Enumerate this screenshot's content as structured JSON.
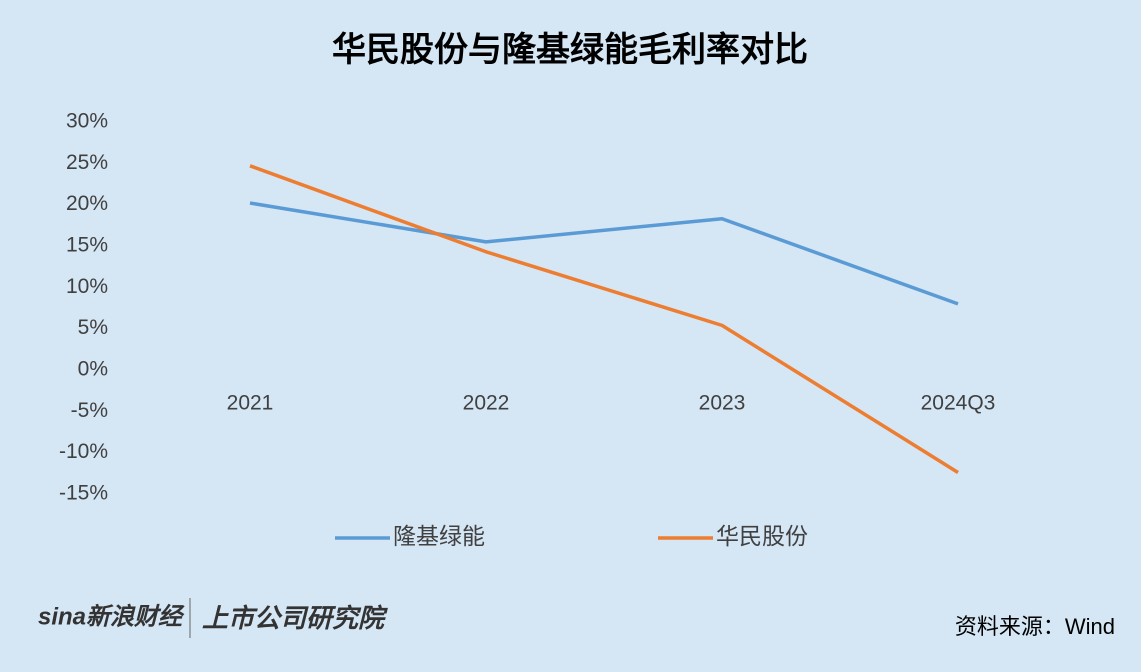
{
  "chart_data": {
    "type": "line",
    "title": "华民股份与隆基绿能毛利率对比",
    "categories": [
      "2021",
      "2022",
      "2023",
      "2024Q3"
    ],
    "series": [
      {
        "name": "隆基绿能",
        "color": "#5b9bd5",
        "values": [
          20.2,
          15.5,
          18.3,
          8.0
        ]
      },
      {
        "name": "华民股份",
        "color": "#ed7d31",
        "values": [
          24.7,
          14.3,
          5.4,
          -12.4
        ]
      }
    ],
    "ylim": [
      -15,
      30
    ],
    "yticks": [
      {
        "value": -15,
        "label": "-15%"
      },
      {
        "value": -10,
        "label": "-10%"
      },
      {
        "value": -5,
        "label": "-5%"
      },
      {
        "value": 0,
        "label": "0%"
      },
      {
        "value": 5,
        "label": "5%"
      },
      {
        "value": 10,
        "label": "10%"
      },
      {
        "value": 15,
        "label": "15%"
      },
      {
        "value": 20,
        "label": "20%"
      },
      {
        "value": 25,
        "label": "25%"
      },
      {
        "value": 30,
        "label": "30%"
      }
    ],
    "grid": false,
    "legend": "bottom",
    "source": "资料来源：Wind",
    "logos": [
      "sina新浪财经",
      "上市公司研究院"
    ]
  }
}
